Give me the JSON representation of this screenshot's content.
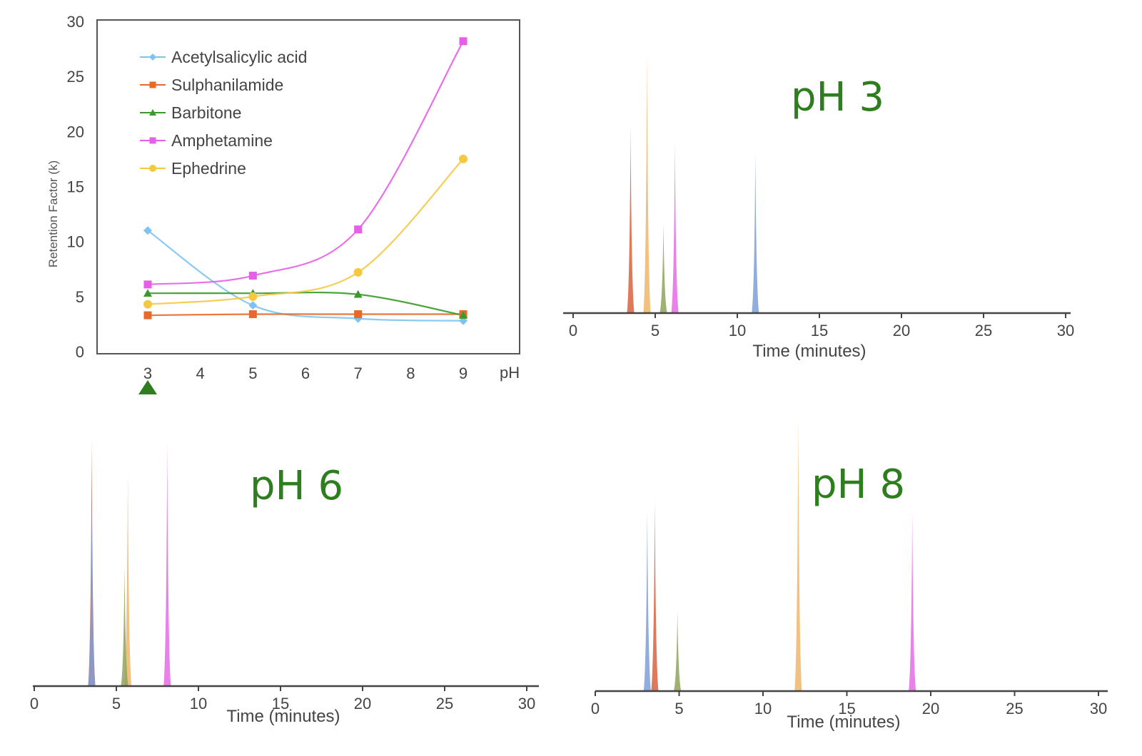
{
  "label_color": "#2e7d1e",
  "chart_data": [
    {
      "type": "line",
      "title": "",
      "xlabel": "pH",
      "ylabel": "Retention Factor (k)",
      "x": [
        3,
        5,
        7,
        9
      ],
      "xticks": [
        "3",
        "4",
        "5",
        "6",
        "7",
        "8",
        "9"
      ],
      "xlim": [
        2,
        9.8
      ],
      "yticks": [
        "0",
        "5",
        "10",
        "15",
        "20",
        "25",
        "30"
      ],
      "ylim": [
        0,
        30
      ],
      "grid": false,
      "legend_position": "top-left",
      "marker_annotation": {
        "at_x": 3,
        "shape": "triangle",
        "color": "#2e7d1e"
      },
      "series": [
        {
          "name": "Acetylsalicylic acid",
          "color": "#7ec4f2",
          "marker": "diamond",
          "values": [
            11.0,
            4.2,
            3.0,
            2.8
          ]
        },
        {
          "name": "Sulphanilamide",
          "color": "#e8692a",
          "marker": "square",
          "values": [
            3.3,
            3.4,
            3.4,
            3.4
          ]
        },
        {
          "name": "Barbitone",
          "color": "#3a9a2a",
          "marker": "triangle",
          "values": [
            5.3,
            5.3,
            5.2,
            3.3
          ]
        },
        {
          "name": "Amphetamine",
          "color": "#e65fe8",
          "marker": "square",
          "values": [
            6.1,
            6.9,
            11.1,
            28.2
          ]
        },
        {
          "name": "Ephedrine",
          "color": "#f5c842",
          "marker": "circle",
          "values": [
            4.3,
            5.0,
            7.2,
            17.5
          ]
        }
      ]
    },
    {
      "type": "bar",
      "title": "pH 3",
      "xlabel": "Time (minutes)",
      "xticks": [
        "0",
        "5",
        "10",
        "15",
        "20",
        "25",
        "30"
      ],
      "xlim": [
        0,
        30
      ],
      "peaks": [
        {
          "compound": "Sulphanilamide",
          "color": "#d9613e",
          "time": 3.5,
          "relative_height": 0.71
        },
        {
          "compound": "Ephedrine",
          "color": "#f0b56a",
          "time": 4.5,
          "relative_height": 1.0
        },
        {
          "compound": "Barbitone",
          "color": "#8fa35a",
          "time": 5.5,
          "relative_height": 0.34
        },
        {
          "compound": "Amphetamine",
          "color": "#e56be8",
          "time": 6.2,
          "relative_height": 0.65
        },
        {
          "compound": "Acetylsalicylic acid",
          "color": "#7e9fd8",
          "time": 11.1,
          "relative_height": 0.61
        }
      ]
    },
    {
      "type": "bar",
      "title": "pH 6",
      "xlabel": "Time (minutes)",
      "xticks": [
        "0",
        "5",
        "10",
        "15",
        "20",
        "25",
        "30"
      ],
      "xlim": [
        0,
        30
      ],
      "peaks": [
        {
          "compound": "Sulphanilamide",
          "color": "#d9613e",
          "time": 3.5,
          "relative_height": 0.91
        },
        {
          "compound": "Acetylsalicylic acid",
          "color": "#7e9fd8",
          "time": 3.5,
          "relative_height": 0.73
        },
        {
          "compound": "Barbitone",
          "color": "#8fa35a",
          "time": 5.5,
          "relative_height": 0.44
        },
        {
          "compound": "Ephedrine",
          "color": "#f0b56a",
          "time": 5.7,
          "relative_height": 0.78
        },
        {
          "compound": "Amphetamine",
          "color": "#e56be8",
          "time": 8.1,
          "relative_height": 0.89
        }
      ]
    },
    {
      "type": "bar",
      "title": "pH 8",
      "xlabel": "Time (minutes)",
      "xticks": [
        "0",
        "5",
        "10",
        "15",
        "20",
        "25",
        "30"
      ],
      "xlim": [
        0,
        30
      ],
      "peaks": [
        {
          "compound": "Acetylsalicylic acid",
          "color": "#7e9fd8",
          "time": 3.1,
          "relative_height": 0.66
        },
        {
          "compound": "Sulphanilamide",
          "color": "#d9613e",
          "time": 3.55,
          "relative_height": 0.69
        },
        {
          "compound": "Barbitone",
          "color": "#8fa35a",
          "time": 4.9,
          "relative_height": 0.29
        },
        {
          "compound": "Ephedrine",
          "color": "#f0b56a",
          "time": 12.1,
          "relative_height": 1.0
        },
        {
          "compound": "Amphetamine",
          "color": "#e56be8",
          "time": 18.9,
          "relative_height": 0.65
        }
      ]
    }
  ]
}
